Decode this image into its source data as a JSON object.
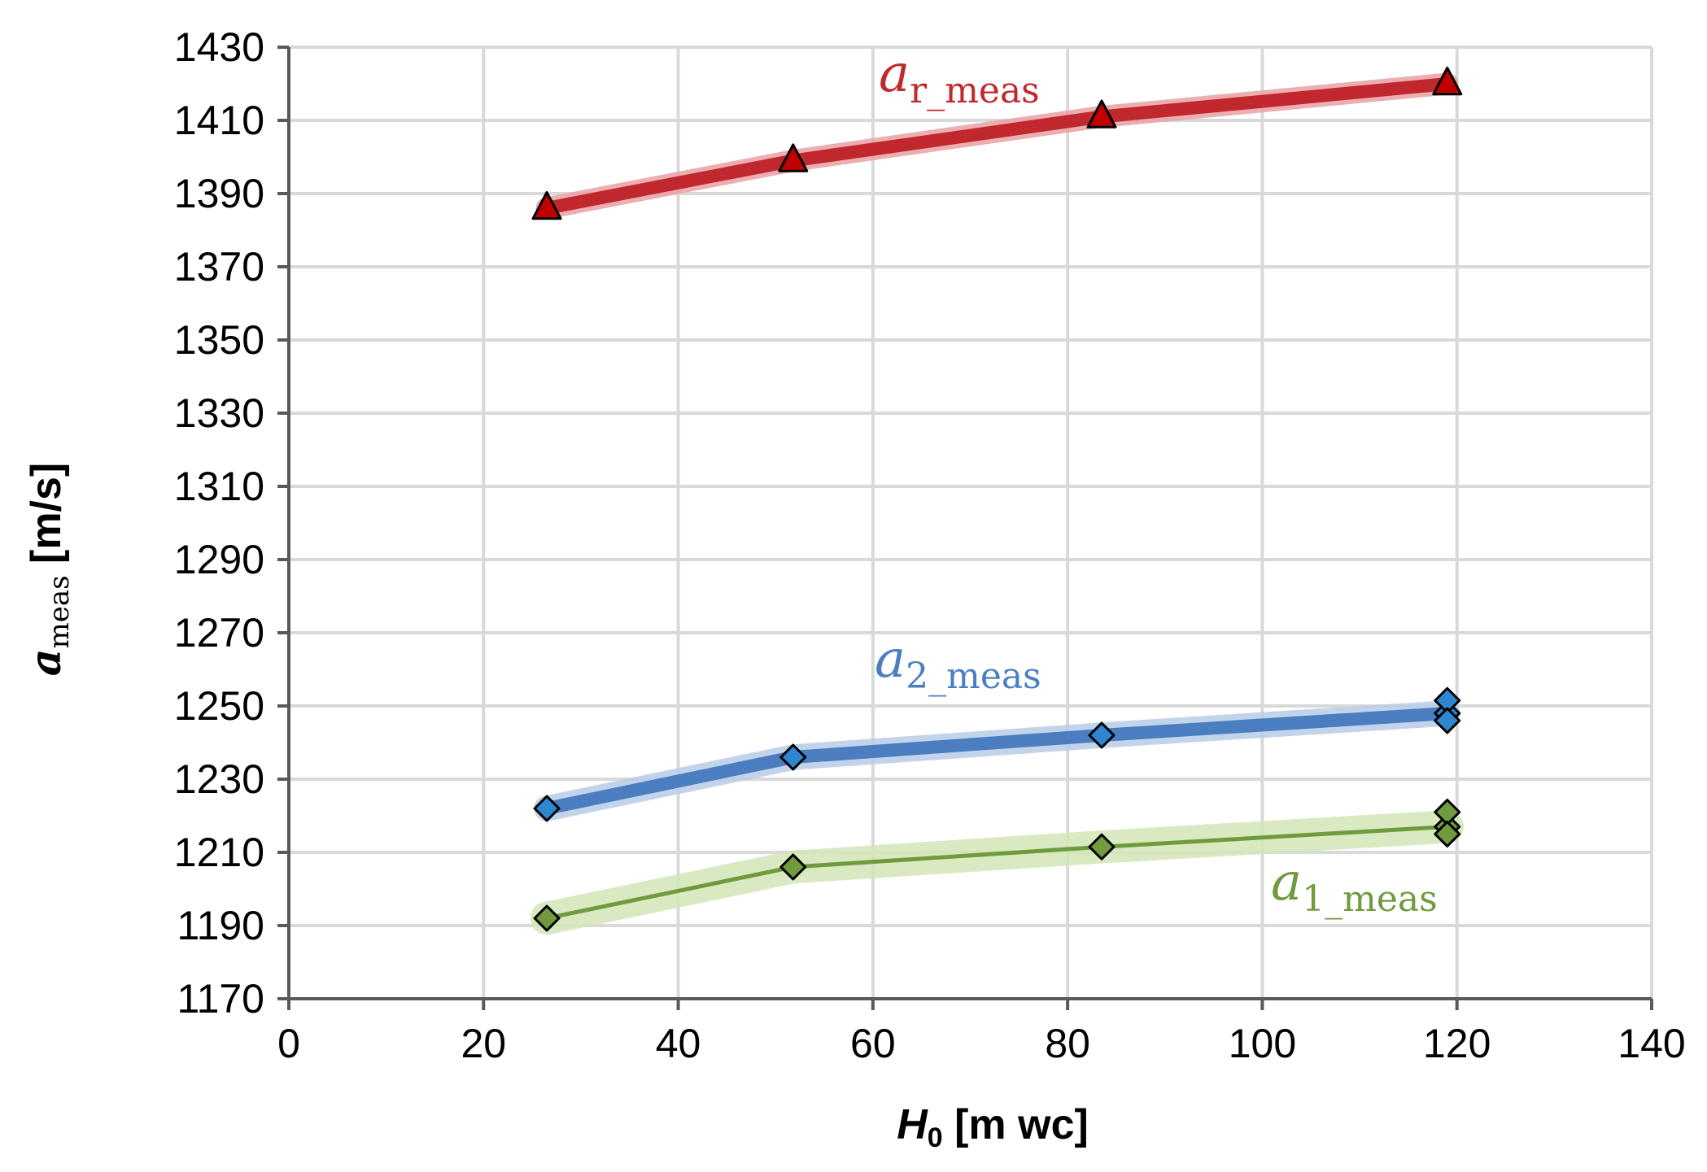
{
  "chart_data": {
    "type": "line",
    "title": "",
    "xlabel": {
      "main": "H",
      "sub": "0",
      "unit": " [m wc]"
    },
    "ylabel": {
      "main": "a",
      "sub": "meas",
      "unit": " [m/s]"
    },
    "xlim": [
      0,
      140
    ],
    "ylim": [
      1170,
      1430
    ],
    "xticks": [
      0,
      20,
      40,
      60,
      80,
      100,
      120,
      140
    ],
    "yticks": [
      1170,
      1190,
      1210,
      1230,
      1250,
      1270,
      1290,
      1310,
      1330,
      1350,
      1370,
      1390,
      1410,
      1430
    ],
    "grid": true,
    "series": [
      {
        "name": "a_r_meas",
        "label_main": "a",
        "label_sub": "r_meas",
        "color": "#c0282d",
        "band_color": "#e8a0a4",
        "marker": "triangle",
        "marker_fill": "#c00000",
        "line_weight": "thick",
        "x": [
          26.5,
          51.8,
          83.5,
          119
        ],
        "y": [
          1386,
          1399,
          1411,
          1420
        ],
        "band": 3,
        "extra_markers": []
      },
      {
        "name": "a_2_meas",
        "label_main": "a",
        "label_sub": "2_meas",
        "color": "#4a7ec0",
        "band_color": "#b8cce6",
        "marker": "diamond",
        "marker_fill": "#2e86d1",
        "line_weight": "thick",
        "x": [
          26.5,
          51.8,
          83.5,
          119
        ],
        "y": [
          1222,
          1236,
          1242,
          1248
        ],
        "band": 3.5,
        "extra_markers": [
          {
            "x": 119,
            "y": 1251.5
          },
          {
            "x": 119,
            "y": 1246
          }
        ]
      },
      {
        "name": "a_1_meas",
        "label_main": "a",
        "label_sub": "1_meas",
        "color": "#6f9a3d",
        "band_color": "#d2e6b8",
        "marker": "diamond",
        "marker_fill": "#6f9a3d",
        "line_weight": "thin",
        "x": [
          26.5,
          51.8,
          83.5,
          119
        ],
        "y": [
          1192,
          1206,
          1211.5,
          1217
        ],
        "band": 4.5,
        "extra_markers": [
          {
            "x": 119,
            "y": 1221
          },
          {
            "x": 119,
            "y": 1215
          }
        ]
      }
    ]
  }
}
